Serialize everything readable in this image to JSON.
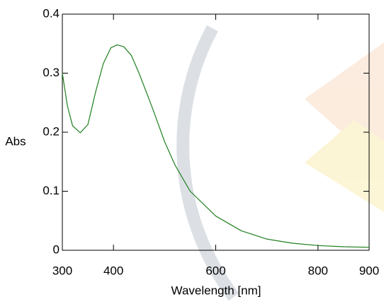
{
  "chart_data": {
    "type": "line",
    "x_label": "Wavelength [nm]",
    "y_label": "Abs",
    "x": [
      300,
      310,
      320,
      335,
      350,
      365,
      380,
      395,
      407,
      420,
      435,
      450,
      470,
      480,
      500,
      520,
      550,
      600,
      650,
      700,
      750,
      800,
      850,
      900
    ],
    "series": [
      {
        "color": "#1f7f1f",
        "values": [
          0.3,
          0.244,
          0.211,
          0.199,
          0.213,
          0.268,
          0.316,
          0.343,
          0.348,
          0.345,
          0.33,
          0.3,
          0.255,
          0.232,
          0.184,
          0.145,
          0.1,
          0.058,
          0.033,
          0.019,
          0.012,
          0.008,
          0.006,
          0.005
        ]
      }
    ],
    "xlim": [
      300,
      900
    ],
    "xticks": [
      300,
      400,
      600,
      800,
      900
    ],
    "ylim": [
      0,
      0.4
    ],
    "yticks": [
      0,
      0.1,
      0.2,
      0.3,
      0.4
    ]
  }
}
